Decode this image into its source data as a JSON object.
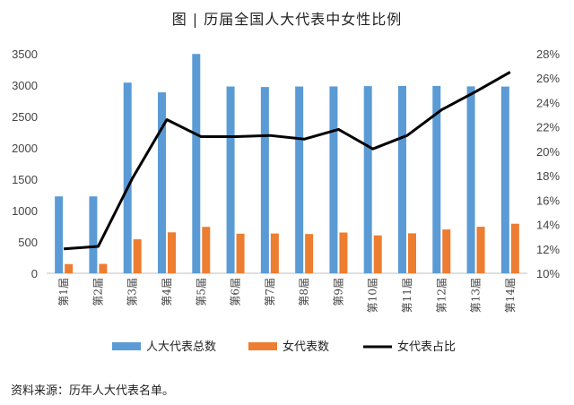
{
  "chart_data": {
    "type": "bar",
    "title": "图 | 历届全国人大代表中女性比例",
    "categories": [
      "第1届",
      "第2届",
      "第3届",
      "第4届",
      "第5届",
      "第6届",
      "第7届",
      "第8届",
      "第9届",
      "第10届",
      "第11届",
      "第12届",
      "第13届",
      "第14届"
    ],
    "series": [
      {
        "name": "人大代表总数",
        "type": "bar",
        "axis": "left",
        "color": "#5B9BD5",
        "values": [
          1226,
          1226,
          3040,
          2885,
          3497,
          2978,
          2970,
          2978,
          2979,
          2984,
          2987,
          2987,
          2980,
          2977
        ]
      },
      {
        "name": "女代表数",
        "type": "bar",
        "axis": "left",
        "color": "#ED7D31",
        "values": [
          147,
          150,
          542,
          653,
          740,
          632,
          634,
          626,
          650,
          604,
          637,
          699,
          742,
          790
        ]
      },
      {
        "name": "女代表占比",
        "type": "line",
        "axis": "right",
        "color": "#000000",
        "values": [
          12.0,
          12.2,
          17.8,
          22.6,
          21.2,
          21.2,
          21.3,
          21.0,
          21.8,
          20.2,
          21.3,
          23.4,
          24.9,
          26.5
        ]
      }
    ],
    "left_axis": {
      "ylim": [
        0,
        3500
      ],
      "ticks": [
        "0",
        "500",
        "1000",
        "1500",
        "2000",
        "2500",
        "3000",
        "3500"
      ]
    },
    "right_axis": {
      "ylim": [
        10,
        28
      ],
      "ticks": [
        "10%",
        "12%",
        "14%",
        "16%",
        "18%",
        "20%",
        "22%",
        "24%",
        "26%",
        "28%"
      ]
    },
    "legend": "bottom",
    "grid": false
  },
  "source": "资料来源：历年人大代表名单。"
}
